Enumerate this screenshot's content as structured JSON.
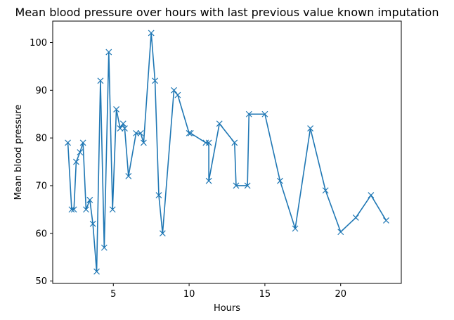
{
  "chart_data": {
    "type": "line",
    "title": "Mean blood pressure over hours with last previous value known imputation",
    "xlabel": "Hours",
    "ylabel": "Mean blood pressure",
    "xlim": [
      1,
      24
    ],
    "ylim": [
      49.5,
      104.5
    ],
    "xticks": [
      5,
      10,
      15,
      20
    ],
    "yticks": [
      50,
      60,
      70,
      80,
      90,
      100
    ],
    "grid": false,
    "legend": "none",
    "marker": "x",
    "color": "#1f77b4",
    "series": [
      {
        "x": [
          2,
          2.25,
          2.4,
          2.55,
          2.8,
          3,
          3.2,
          3.45,
          3.65,
          3.9,
          4.15,
          4.4,
          4.7,
          4.95,
          5.2,
          5.45,
          5.65,
          5.75,
          6.0,
          6.5,
          6.8,
          7.0,
          7.5,
          7.75,
          8.0,
          8.25,
          9.0,
          9.25,
          10.0,
          10.1,
          11.1,
          11.3,
          11.3,
          12.0,
          13.0,
          13.1,
          13.85,
          13.95,
          15.0,
          16.0,
          17.0,
          18.0,
          19.0,
          20.0,
          21.0,
          22.0,
          23.0
        ],
        "y": [
          79,
          65,
          65,
          75,
          77,
          79,
          65,
          67,
          62,
          52,
          92,
          57,
          98,
          65,
          86,
          82,
          83,
          82,
          72,
          81,
          81,
          79,
          102,
          92,
          68,
          60,
          90,
          89,
          81,
          81,
          79,
          79,
          71,
          83,
          79,
          70,
          70,
          85,
          85,
          71,
          61,
          82,
          69,
          60.3,
          63.3,
          68,
          62.7
        ]
      }
    ]
  }
}
